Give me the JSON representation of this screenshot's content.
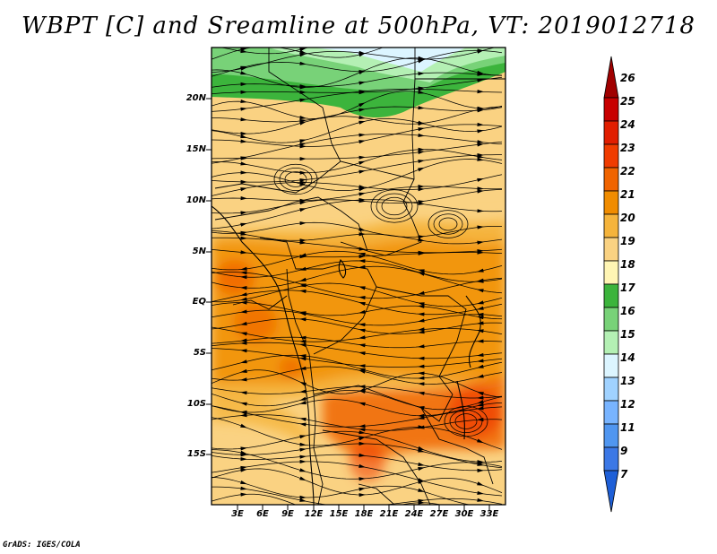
{
  "title": "WBPT [C] and Sreamline at 500hPa, VT: 2019012718",
  "footer": "GrADS: IGES/COLA",
  "map": {
    "lat_labels": [
      "20N",
      "15N",
      "10N",
      "5N",
      "EQ",
      "5S",
      "10S",
      "15S"
    ],
    "lon_labels": [
      "3E",
      "6E",
      "9E",
      "12E",
      "15E",
      "18E",
      "21E",
      "24E",
      "27E",
      "30E",
      "33E"
    ]
  },
  "colorbar": {
    "labels": [
      "26",
      "25",
      "24",
      "23",
      "22",
      "21",
      "20",
      "19",
      "18",
      "17",
      "16",
      "15",
      "14",
      "13",
      "12",
      "11",
      "9",
      "7"
    ],
    "colors": [
      "#a00000",
      "#c80000",
      "#e11e00",
      "#f03c00",
      "#f06400",
      "#f08c00",
      "#f5b43c",
      "#fad282",
      "#fff5b4",
      "#3cb43c",
      "#78d278",
      "#b4f0b4",
      "#dcf5ff",
      "#a0d2ff",
      "#78b4ff",
      "#5096f0",
      "#3c78e6",
      "#1e5fd7"
    ]
  },
  "chart_data": {
    "type": "heatmap",
    "title": "WBPT [C] and Sreamline at 500hPa, VT: 2019012718",
    "variable": "wet-bulb potential temperature (C) with streamlines at 500 hPa",
    "valid_time": "2019012718",
    "lon_range": [
      "0E",
      "35E"
    ],
    "lat_range": [
      "20S",
      "25N"
    ],
    "color_levels": [
      7,
      9,
      11,
      12,
      13,
      14,
      15,
      16,
      17,
      18,
      19,
      20,
      21,
      22,
      23,
      24,
      25,
      26
    ]
  }
}
